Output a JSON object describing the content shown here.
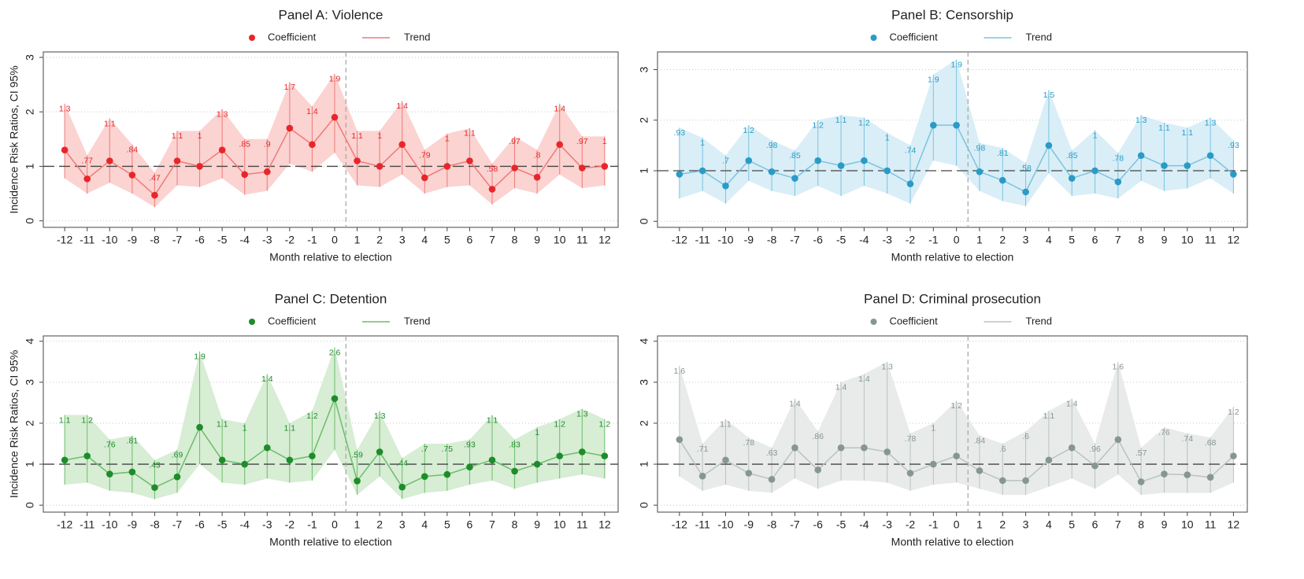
{
  "chart_data": [
    {
      "type": "line",
      "title": "Panel A: Violence",
      "xlabel": "Month relative to election",
      "ylabel": "Incidence Risk Ratios, CI 95%",
      "x": [
        -12,
        -11,
        -10,
        -9,
        -8,
        -7,
        -6,
        -5,
        -4,
        -3,
        -2,
        -1,
        0,
        1,
        2,
        3,
        4,
        5,
        6,
        7,
        8,
        9,
        10,
        11,
        12
      ],
      "xticks": [
        -12,
        -11,
        -10,
        -9,
        -8,
        -7,
        -6,
        -5,
        -4,
        -3,
        -2,
        -1,
        0,
        1,
        2,
        3,
        4,
        5,
        6,
        7,
        8,
        9,
        10,
        11,
        12
      ],
      "xlim": [
        -12.95,
        12.6
      ],
      "ylim": [
        -0.12,
        3.1
      ],
      "yticks": [
        0,
        1,
        2,
        3
      ],
      "ref_line": 1,
      "event_line": 0.5,
      "band_color": "#fbd3d1",
      "trend_name": "Trend",
      "trend_color": "#ef7a78",
      "series": [
        {
          "name": "Coefficient",
          "color": "#e8262a",
          "values": [
            1.3,
            0.77,
            1.1,
            0.84,
            0.47,
            1.1,
            1,
            1.3,
            0.85,
            0.9,
            1.7,
            1.4,
            1.9,
            1.1,
            1,
            1.4,
            0.79,
            1,
            1.1,
            0.58,
            0.97,
            0.8,
            1.4,
            0.97,
            1
          ],
          "value_labels": [
            "1.3",
            ".77",
            "1.1",
            ".84",
            ".47",
            "1.1",
            "1",
            "1.3",
            ".85",
            ".9",
            "1.7",
            "1.4",
            "1.9",
            "1.1",
            "1",
            "1.4",
            ".79",
            "1",
            "1.1",
            ".58",
            ".97",
            ".8",
            "1.4",
            ".97",
            "1"
          ],
          "lower": [
            0.78,
            0.5,
            0.7,
            0.5,
            0.25,
            0.65,
            0.62,
            0.78,
            0.48,
            0.55,
            1.05,
            0.9,
            1.25,
            0.65,
            0.62,
            0.85,
            0.5,
            0.62,
            0.65,
            0.3,
            0.6,
            0.5,
            0.85,
            0.6,
            0.65
          ],
          "upper": [
            2.15,
            1.2,
            1.88,
            1.4,
            0.88,
            1.65,
            1.65,
            2.05,
            1.5,
            1.5,
            2.55,
            2.1,
            2.7,
            1.65,
            1.65,
            2.2,
            1.3,
            1.6,
            1.7,
            1.05,
            1.55,
            1.3,
            2.15,
            1.55,
            1.55
          ]
        }
      ]
    },
    {
      "type": "line",
      "title": "Panel B: Censorship",
      "xlabel": "Month relative to election",
      "x": [
        -12,
        -11,
        -10,
        -9,
        -8,
        -7,
        -6,
        -5,
        -4,
        -3,
        -2,
        -1,
        0,
        1,
        2,
        3,
        4,
        5,
        6,
        7,
        8,
        9,
        10,
        11,
        12
      ],
      "xticks": [
        -12,
        -11,
        -10,
        -9,
        -8,
        -7,
        -6,
        -5,
        -4,
        -3,
        -2,
        -1,
        0,
        1,
        2,
        3,
        4,
        5,
        6,
        7,
        8,
        9,
        10,
        11,
        12
      ],
      "xlim": [
        -12.95,
        12.6
      ],
      "ylim": [
        -0.12,
        3.35
      ],
      "yticks": [
        0,
        1,
        2,
        3
      ],
      "ref_line": 1,
      "event_line": 0.5,
      "band_color": "#d9eef7",
      "trend_name": "Trend",
      "trend_color": "#7cc3df",
      "series": [
        {
          "name": "Coefficient",
          "color": "#2a9bc6",
          "values": [
            0.93,
            1,
            0.7,
            1.2,
            0.98,
            0.85,
            1.2,
            1.1,
            1.2,
            1,
            0.74,
            1.9,
            1.9,
            0.98,
            0.81,
            0.58,
            1.5,
            0.85,
            1,
            0.78,
            1.3,
            1.1,
            1.1,
            1.3,
            0.93
          ],
          "value_labels": [
            ".93",
            "1",
            ".7",
            "1.2",
            ".98",
            ".85",
            "1.2",
            "1.1",
            "1.2",
            "1",
            ".74",
            "1.9",
            "1.9",
            ".98",
            ".81",
            ".58",
            "1.5",
            ".85",
            "1",
            ".78",
            "1.3",
            "1.1",
            "1.1",
            "1.3",
            ".93"
          ],
          "lower": [
            0.45,
            0.6,
            0.35,
            0.8,
            0.6,
            0.5,
            0.7,
            0.5,
            0.7,
            0.55,
            0.35,
            1.2,
            1.1,
            0.6,
            0.4,
            0.3,
            0.95,
            0.5,
            0.55,
            0.45,
            0.8,
            0.6,
            0.65,
            0.85,
            0.55
          ],
          "upper": [
            1.85,
            1.65,
            1.3,
            1.9,
            1.6,
            1.4,
            2.0,
            2.1,
            2.05,
            1.75,
            1.5,
            2.9,
            3.2,
            1.55,
            1.45,
            1.15,
            2.6,
            1.4,
            1.8,
            1.35,
            2.1,
            1.95,
            1.85,
            2.05,
            1.6
          ]
        }
      ]
    },
    {
      "type": "line",
      "title": "Panel C: Detention",
      "xlabel": "Month relative to election",
      "ylabel": "Incidence Risk Ratios, CI 95%",
      "x": [
        -12,
        -11,
        -10,
        -9,
        -8,
        -7,
        -6,
        -5,
        -4,
        -3,
        -2,
        -1,
        0,
        1,
        2,
        3,
        4,
        5,
        6,
        7,
        8,
        9,
        10,
        11,
        12
      ],
      "xticks": [
        -12,
        -11,
        -10,
        -9,
        -8,
        -7,
        -6,
        -5,
        -4,
        -3,
        -2,
        -1,
        0,
        1,
        2,
        3,
        4,
        5,
        6,
        7,
        8,
        9,
        10,
        11,
        12
      ],
      "xlim": [
        -12.95,
        12.6
      ],
      "ylim": [
        -0.17,
        4.13
      ],
      "yticks": [
        0,
        1,
        2,
        3,
        4
      ],
      "ref_line": 1,
      "event_line": 0.5,
      "band_color": "#d7edd4",
      "trend_name": "Trend",
      "trend_color": "#6cbd6a",
      "series": [
        {
          "name": "Coefficient",
          "color": "#1e8c2a",
          "values": [
            1.1,
            1.2,
            0.76,
            0.81,
            0.43,
            0.69,
            1.9,
            1.1,
            1,
            1.4,
            1.1,
            1.2,
            2.6,
            0.59,
            1.3,
            0.44,
            0.7,
            0.75,
            0.93,
            1.1,
            0.83,
            1,
            1.2,
            1.3,
            1.2
          ],
          "value_labels": [
            "1.1",
            "1.2",
            ".76",
            ".81",
            ".43",
            ".69",
            "1.9",
            "1.1",
            "1",
            "1.4",
            "1.1",
            "1.2",
            "2.6",
            ".59",
            "1.3",
            ".44",
            ".7",
            ".75",
            ".93",
            "1.1",
            ".83",
            "1",
            "1.2",
            "1.3",
            "1.2"
          ],
          "lower": [
            0.5,
            0.55,
            0.35,
            0.3,
            0.15,
            0.3,
            1.0,
            0.55,
            0.5,
            0.65,
            0.55,
            0.6,
            1.35,
            0.25,
            0.7,
            0.15,
            0.3,
            0.35,
            0.5,
            0.6,
            0.4,
            0.55,
            0.65,
            0.75,
            0.65
          ],
          "upper": [
            2.2,
            2.2,
            1.6,
            1.7,
            1.1,
            1.35,
            3.75,
            2.1,
            2.0,
            3.2,
            2.0,
            2.3,
            3.85,
            1.35,
            2.3,
            1.15,
            1.5,
            1.5,
            1.6,
            2.2,
            1.6,
            1.9,
            2.1,
            2.35,
            2.1
          ]
        }
      ]
    },
    {
      "type": "line",
      "title": "Panel D: Criminal prosecution",
      "xlabel": "Month relative to election",
      "x": [
        -12,
        -11,
        -10,
        -9,
        -8,
        -7,
        -6,
        -5,
        -4,
        -3,
        -2,
        -1,
        0,
        1,
        2,
        3,
        4,
        5,
        6,
        7,
        8,
        9,
        10,
        11,
        12
      ],
      "xticks": [
        -12,
        -11,
        -10,
        -9,
        -8,
        -7,
        -6,
        -5,
        -4,
        -3,
        -2,
        -1,
        0,
        1,
        2,
        3,
        4,
        5,
        6,
        7,
        8,
        9,
        10,
        11,
        12
      ],
      "xlim": [
        -12.95,
        12.6
      ],
      "ylim": [
        -0.17,
        4.13
      ],
      "yticks": [
        0,
        1,
        2,
        3,
        4
      ],
      "ref_line": 1,
      "event_line": 0.5,
      "band_color": "#e8ebe9",
      "trend_name": "Trend",
      "trend_color": "#b9c3bf",
      "series": [
        {
          "name": "Coefficient",
          "color": "#86978f",
          "values": [
            1.6,
            0.71,
            1.1,
            0.78,
            0.63,
            1.4,
            0.86,
            1.4,
            1.4,
            1.3,
            0.78,
            1,
            1.2,
            0.84,
            0.6,
            0.6,
            1.1,
            1.4,
            0.96,
            1.6,
            0.57,
            0.76,
            0.74,
            0.68,
            1.2
          ],
          "value_labels": [
            "1.6",
            ".71",
            "1.1",
            ".78",
            ".63",
            "1.4",
            ".86",
            "1.4",
            "1.4",
            "1.3",
            ".78",
            "1",
            "1.2",
            ".84",
            ".6",
            ".6",
            "1.1",
            "1.4",
            ".96",
            "1.6",
            ".57",
            ".76",
            ".74",
            ".68",
            "1.2"
          ],
          "lower": [
            0.7,
            0.35,
            0.5,
            0.35,
            0.3,
            0.65,
            0.4,
            0.6,
            0.6,
            0.55,
            0.35,
            0.5,
            0.55,
            0.4,
            0.25,
            0.25,
            0.45,
            0.65,
            0.4,
            0.75,
            0.25,
            0.3,
            0.3,
            0.3,
            0.55
          ],
          "upper": [
            3.4,
            1.5,
            2.1,
            1.65,
            1.4,
            2.6,
            1.8,
            3.0,
            3.2,
            3.5,
            1.75,
            2.0,
            2.55,
            1.7,
            1.5,
            1.8,
            2.3,
            2.6,
            1.5,
            3.5,
            1.4,
            1.9,
            1.75,
            1.65,
            2.4
          ]
        }
      ]
    }
  ]
}
